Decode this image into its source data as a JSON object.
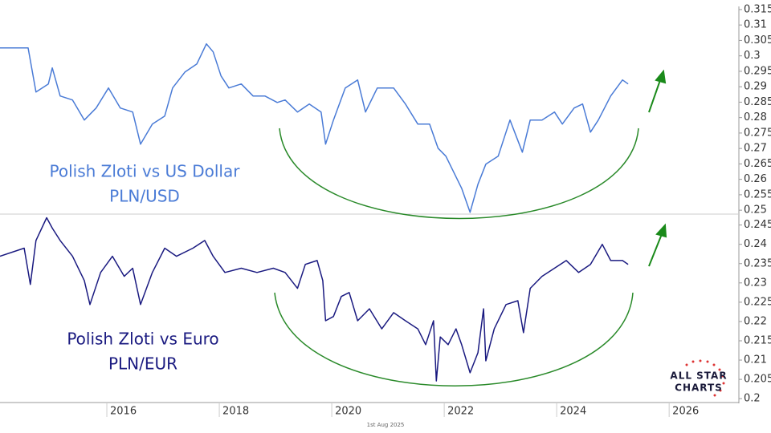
{
  "chart_data": [
    {
      "type": "line",
      "annotations": [
        "Polish Zloti vs US Dollar",
        "PLN/USD"
      ],
      "color": "#4a7bd6",
      "x": [
        2014.1,
        2014.6,
        2014.74,
        2014.96,
        2015.03,
        2015.17,
        2015.39,
        2015.6,
        2015.81,
        2016.03,
        2016.24,
        2016.46,
        2016.6,
        2016.81,
        2017.03,
        2017.17,
        2017.39,
        2017.6,
        2017.77,
        2017.89,
        2018.03,
        2018.17,
        2018.39,
        2018.6,
        2018.81,
        2019.03,
        2019.17,
        2019.39,
        2019.6,
        2019.81,
        2019.89,
        2020.03,
        2020.24,
        2020.46,
        2020.6,
        2020.81,
        2021.1,
        2021.31,
        2021.53,
        2021.74,
        2021.89,
        2022.03,
        2022.17,
        2022.31,
        2022.46,
        2022.6,
        2022.74,
        2022.96,
        2023.17,
        2023.39,
        2023.53,
        2023.74,
        2023.96,
        2024.1,
        2024.31,
        2024.46,
        2024.6,
        2024.74,
        2024.96,
        2025.17,
        2025.27
      ],
      "values": [
        0.3026,
        0.3026,
        0.2883,
        0.2909,
        0.2961,
        0.287,
        0.2857,
        0.2792,
        0.2831,
        0.2896,
        0.2831,
        0.2818,
        0.2714,
        0.2779,
        0.2805,
        0.2896,
        0.2948,
        0.2974,
        0.3039,
        0.3013,
        0.2935,
        0.2896,
        0.2909,
        0.287,
        0.287,
        0.2849,
        0.2857,
        0.2818,
        0.2844,
        0.2818,
        0.2714,
        0.2792,
        0.2896,
        0.2922,
        0.2818,
        0.2896,
        0.2896,
        0.2844,
        0.2779,
        0.2779,
        0.2701,
        0.2675,
        0.2623,
        0.2571,
        0.2493,
        0.2584,
        0.2649,
        0.2675,
        0.2792,
        0.2688,
        0.2792,
        0.2792,
        0.2818,
        0.2779,
        0.2831,
        0.2844,
        0.2753,
        0.2792,
        0.287,
        0.2922,
        0.2909
      ],
      "xlim": [
        2014.1,
        2027.24
      ],
      "ylim": [
        0.249,
        0.3155
      ],
      "yticks": [
        0.315,
        0.31,
        0.305,
        0.3,
        0.295,
        0.29,
        0.285,
        0.28,
        0.275,
        0.27,
        0.265,
        0.26,
        0.255,
        0.25
      ]
    },
    {
      "type": "line",
      "annotations": [
        "Polish Zloti vs Euro",
        "PLN/EUR"
      ],
      "color": "#1a1a80",
      "x": [
        2014.1,
        2014.53,
        2014.64,
        2014.74,
        2014.93,
        2015.03,
        2015.17,
        2015.39,
        2015.6,
        2015.7,
        2015.89,
        2016.1,
        2016.31,
        2016.46,
        2016.6,
        2016.81,
        2017.03,
        2017.24,
        2017.53,
        2017.74,
        2017.89,
        2018.1,
        2018.39,
        2018.67,
        2018.96,
        2019.17,
        2019.39,
        2019.53,
        2019.74,
        2019.84,
        2019.89,
        2020.03,
        2020.17,
        2020.31,
        2020.46,
        2020.67,
        2020.89,
        2021.1,
        2021.31,
        2021.53,
        2021.67,
        2021.81,
        2021.86,
        2021.93,
        2022.07,
        2022.21,
        2022.31,
        2022.46,
        2022.6,
        2022.7,
        2022.74,
        2022.89,
        2023.1,
        2023.31,
        2023.41,
        2023.53,
        2023.74,
        2023.96,
        2024.17,
        2024.39,
        2024.6,
        2024.81,
        2024.96,
        2025.17,
        2025.27
      ],
      "values": [
        0.2369,
        0.239,
        0.2296,
        0.241,
        0.2469,
        0.2442,
        0.241,
        0.2369,
        0.2306,
        0.2244,
        0.2327,
        0.2369,
        0.2317,
        0.2338,
        0.2244,
        0.2327,
        0.239,
        0.2369,
        0.239,
        0.241,
        0.2369,
        0.2327,
        0.2338,
        0.2327,
        0.2338,
        0.2327,
        0.2286,
        0.2348,
        0.2358,
        0.2306,
        0.2202,
        0.2213,
        0.2265,
        0.2275,
        0.2202,
        0.2233,
        0.2181,
        0.2223,
        0.2202,
        0.2181,
        0.214,
        0.2202,
        0.2046,
        0.216,
        0.214,
        0.2181,
        0.214,
        0.2067,
        0.2119,
        0.2233,
        0.2098,
        0.2181,
        0.2244,
        0.2254,
        0.2171,
        0.2286,
        0.2317,
        0.2338,
        0.2358,
        0.2327,
        0.2348,
        0.24,
        0.2358,
        0.2358,
        0.2348
      ],
      "xlim": [
        2014.1,
        2027.24
      ],
      "xticks": [
        2016,
        2018,
        2020,
        2022,
        2024,
        2026
      ],
      "ylim": [
        0.199,
        0.247
      ],
      "yticks": [
        0.245,
        0.24,
        0.235,
        0.23,
        0.225,
        0.22,
        0.215,
        0.21,
        0.205,
        0.2
      ]
    }
  ],
  "footer": "1st Aug 2025",
  "logo": [
    "ALL STAR",
    "CHARTS"
  ]
}
